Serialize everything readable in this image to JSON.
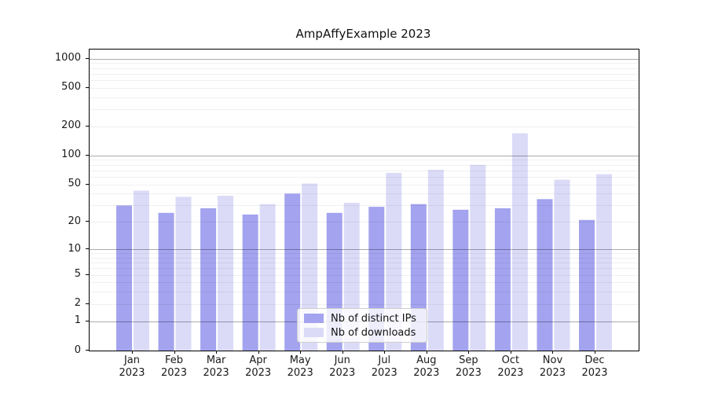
{
  "chart_data": {
    "type": "bar",
    "title": "AmpAffyExample 2023",
    "categories": [
      "Jan",
      "Feb",
      "Mar",
      "Apr",
      "May",
      "Jun",
      "Jul",
      "Aug",
      "Sep",
      "Oct",
      "Nov",
      "Dec"
    ],
    "year_label": "2023",
    "series": [
      {
        "name": "Nb of distinct IPs",
        "color": "#a3a3ef",
        "values": [
          30,
          25,
          28,
          24,
          40,
          25,
          29,
          31,
          27,
          28,
          35,
          21
        ]
      },
      {
        "name": "Nb of downloads",
        "color": "#dbdbf8",
        "values": [
          43,
          37,
          38,
          31,
          51,
          32,
          66,
          71,
          80,
          170,
          56,
          64
        ]
      }
    ],
    "xlabel": "",
    "ylabel": "",
    "y_scale": "log10(1+x)",
    "y_ticks": [
      0,
      1,
      2,
      5,
      10,
      20,
      50,
      100,
      200,
      500,
      1000
    ],
    "y_major_gridlines": [
      1,
      10,
      100,
      1000
    ],
    "y_minor_gridlines": [
      2,
      3,
      4,
      5,
      6,
      7,
      8,
      9,
      20,
      30,
      40,
      50,
      60,
      70,
      80,
      90,
      200,
      300,
      400,
      500,
      600,
      700,
      800,
      900
    ],
    "ylim": [
      0,
      1240
    ],
    "grid": "on",
    "legend_position": "lower center",
    "colors": {
      "background": "#ffffff",
      "axis": "#000000",
      "major_grid": "#ababab",
      "minor_grid": "#f0f0f0",
      "tick_text": "#1a1a1a"
    }
  }
}
